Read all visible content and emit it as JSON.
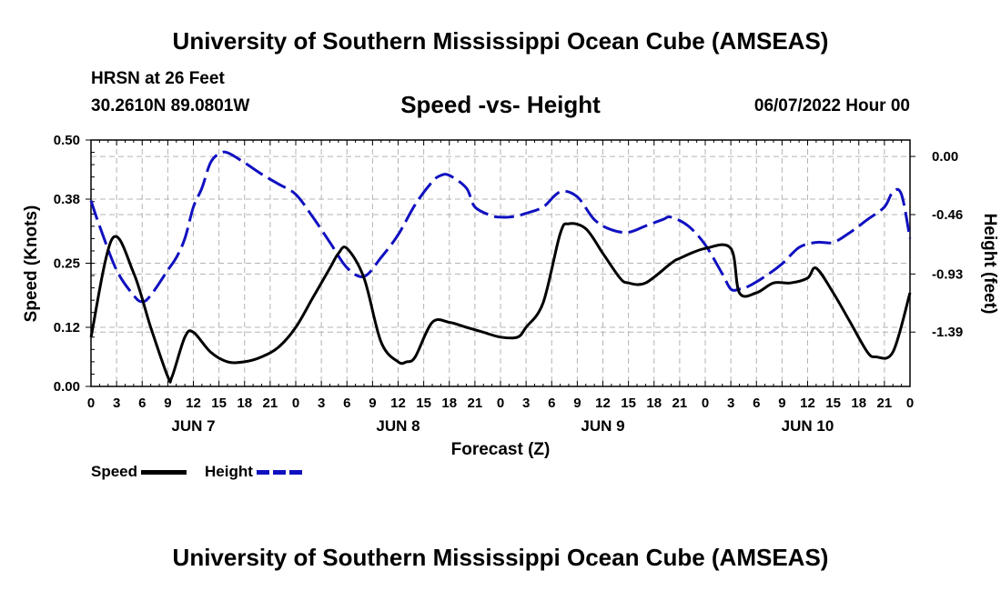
{
  "header": {
    "title": "University of Southern Mississippi Ocean Cube (AMSEAS)",
    "station": "HRSN at 26 Feet",
    "coords": "30.2610N  89.0801W",
    "subtitle": "Speed -vs- Height",
    "date": "06/07/2022 Hour 00"
  },
  "footer": {
    "title": "University of Southern Mississippi Ocean Cube (AMSEAS)"
  },
  "legend": {
    "speed": "Speed",
    "height": "Height"
  },
  "colors": {
    "speed": "#000000",
    "height": "#1010c0",
    "grid": "#b4b4b4"
  },
  "chart_data": {
    "type": "line",
    "xlabel": "Forecast (Z)",
    "ylabel": "Speed (Knots)",
    "y2label": "Height (feet)",
    "x_range_hours": [
      0,
      96
    ],
    "ylim": [
      0,
      0.5
    ],
    "y2lim": [
      -1.82,
      0.13
    ],
    "yticks": [
      "0.00",
      "0.12",
      "0.25",
      "0.38",
      "0.50"
    ],
    "y2ticks": [
      "0.00",
      "-0.46",
      "-0.93",
      "-1.39"
    ],
    "xtick_labels": [
      "0",
      "3",
      "6",
      "9",
      "12",
      "15",
      "18",
      "21",
      "0",
      "3",
      "6",
      "9",
      "12",
      "15",
      "18",
      "21",
      "0",
      "3",
      "6",
      "9",
      "12",
      "15",
      "18",
      "21",
      "0",
      "3",
      "6",
      "9",
      "12",
      "15",
      "18",
      "21",
      "0"
    ],
    "day_labels": [
      {
        "hour": 12,
        "label": "JUN 7"
      },
      {
        "hour": 36,
        "label": "JUN 8"
      },
      {
        "hour": 60,
        "label": "JUN 9"
      },
      {
        "hour": 84,
        "label": "JUN 10"
      }
    ],
    "series": [
      {
        "name": "Speed",
        "axis": "left",
        "x": [
          0,
          2.5,
          5,
          7,
          9,
          9.5,
          11,
          12,
          14,
          16,
          18,
          20,
          22,
          24,
          26,
          28,
          29,
          30,
          32,
          34,
          36,
          37,
          38,
          40,
          42,
          44,
          46,
          48,
          50,
          51,
          53,
          55,
          56,
          58,
          60,
          62,
          63,
          65,
          68,
          69,
          72,
          75,
          76,
          78,
          80,
          82,
          84,
          85,
          87,
          89,
          91,
          92,
          94,
          96
        ],
        "values": [
          0.1,
          0.3,
          0.23,
          0.12,
          0.02,
          0.02,
          0.1,
          0.11,
          0.07,
          0.05,
          0.05,
          0.06,
          0.08,
          0.12,
          0.18,
          0.24,
          0.27,
          0.28,
          0.22,
          0.09,
          0.05,
          0.05,
          0.06,
          0.13,
          0.13,
          0.12,
          0.11,
          0.1,
          0.1,
          0.12,
          0.17,
          0.31,
          0.33,
          0.32,
          0.27,
          0.22,
          0.21,
          0.21,
          0.25,
          0.26,
          0.28,
          0.28,
          0.19,
          0.19,
          0.21,
          0.21,
          0.22,
          0.24,
          0.19,
          0.13,
          0.07,
          0.06,
          0.07,
          0.19
        ]
      },
      {
        "name": "Height",
        "axis": "right",
        "x": [
          0,
          1,
          3,
          5,
          6,
          7,
          9,
          10,
          11,
          12,
          13,
          14,
          15,
          16,
          18,
          20,
          22,
          24,
          26,
          28,
          30,
          32,
          34,
          36,
          38,
          40,
          41,
          42,
          44,
          45,
          47,
          48,
          49,
          50,
          51,
          53,
          55,
          57,
          59,
          61,
          63,
          65,
          67,
          68,
          70,
          72,
          74,
          75,
          76,
          77,
          79,
          81,
          83,
          85,
          87,
          89,
          91,
          93,
          94,
          95,
          96
        ],
        "values": [
          -0.35,
          -0.55,
          -0.9,
          -1.1,
          -1.15,
          -1.1,
          -0.9,
          -0.8,
          -0.65,
          -0.4,
          -0.25,
          -0.05,
          0.02,
          0.03,
          -0.05,
          -0.14,
          -0.22,
          -0.3,
          -0.48,
          -0.68,
          -0.88,
          -0.95,
          -0.8,
          -0.62,
          -0.38,
          -0.2,
          -0.15,
          -0.15,
          -0.25,
          -0.4,
          -0.47,
          -0.48,
          -0.48,
          -0.47,
          -0.45,
          -0.4,
          -0.28,
          -0.32,
          -0.5,
          -0.58,
          -0.6,
          -0.55,
          -0.5,
          -0.48,
          -0.55,
          -0.7,
          -0.93,
          -1.05,
          -1.05,
          -1.03,
          -0.95,
          -0.85,
          -0.72,
          -0.68,
          -0.68,
          -0.6,
          -0.5,
          -0.4,
          -0.28,
          -0.3,
          -0.65
        ]
      }
    ]
  }
}
